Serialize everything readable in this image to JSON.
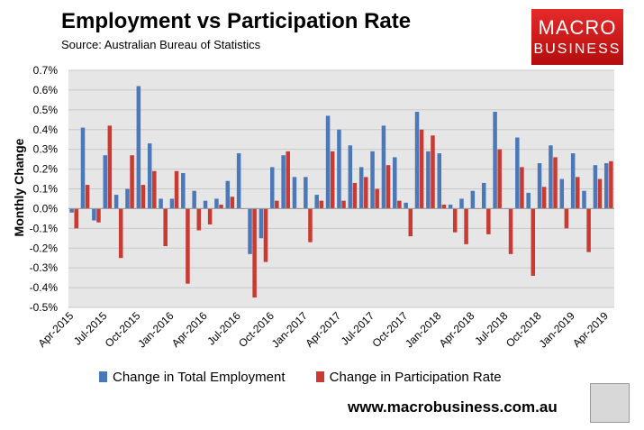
{
  "header": {
    "title": "Employment vs Participation Rate",
    "source": "Source: Australian Bureau of Statistics",
    "logo_line1": "MACRO",
    "logo_line2": "BUSINESS"
  },
  "footer": {
    "url": "www.macrobusiness.com.au"
  },
  "colors": {
    "employment": "#4a78b8",
    "participation": "#c83a32"
  },
  "chart_data": {
    "type": "bar",
    "title": "Employment vs Participation Rate",
    "ylabel": "Monthly Change",
    "xlabel": "",
    "ylim": [
      -0.5,
      0.7
    ],
    "yticks": [
      0.7,
      0.6,
      0.5,
      0.4,
      0.3,
      0.2,
      0.1,
      0.0,
      -0.1,
      -0.2,
      -0.3,
      -0.4,
      -0.5
    ],
    "ytick_labels": [
      "0.7%",
      "0.6%",
      "0.5%",
      "0.4%",
      "0.3%",
      "0.2%",
      "0.1%",
      "0.0%",
      "-0.1%",
      "-0.2%",
      "-0.3%",
      "-0.4%",
      "-0.5%"
    ],
    "categories": [
      "Apr-2015",
      "May-2015",
      "Jun-2015",
      "Jul-2015",
      "Aug-2015",
      "Sep-2015",
      "Oct-2015",
      "Nov-2015",
      "Dec-2015",
      "Jan-2016",
      "Feb-2016",
      "Mar-2016",
      "Apr-2016",
      "May-2016",
      "Jun-2016",
      "Jul-2016",
      "Aug-2016",
      "Sep-2016",
      "Oct-2016",
      "Nov-2016",
      "Dec-2016",
      "Jan-2017",
      "Feb-2017",
      "Mar-2017",
      "Apr-2017",
      "May-2017",
      "Jun-2017",
      "Jul-2017",
      "Aug-2017",
      "Sep-2017",
      "Oct-2017",
      "Nov-2017",
      "Dec-2017",
      "Jan-2018",
      "Feb-2018",
      "Mar-2018",
      "Apr-2018",
      "May-2018",
      "Jun-2018",
      "Jul-2018",
      "Aug-2018",
      "Sep-2018",
      "Oct-2018",
      "Nov-2018",
      "Dec-2018",
      "Jan-2019",
      "Feb-2019",
      "Mar-2019",
      "Apr-2019"
    ],
    "tick_labels": [
      "Apr-2015",
      "Jul-2015",
      "Oct-2015",
      "Jan-2016",
      "Apr-2016",
      "Jul-2016",
      "Oct-2016",
      "Jan-2017",
      "Apr-2017",
      "Jul-2017",
      "Oct-2017",
      "Jan-2018",
      "Apr-2018",
      "Jul-2018",
      "Oct-2018",
      "Jan-2019",
      "Apr-2019"
    ],
    "series": [
      {
        "name": "Change in Total Employment",
        "values": [
          -0.02,
          0.41,
          -0.06,
          0.27,
          0.07,
          0.1,
          0.62,
          0.33,
          0.05,
          0.05,
          0.18,
          0.09,
          0.04,
          0.05,
          0.14,
          0.28,
          -0.23,
          -0.15,
          0.21,
          0.27,
          0.16,
          0.16,
          0.07,
          0.47,
          0.4,
          0.32,
          0.21,
          0.29,
          0.42,
          0.26,
          0.03,
          0.49,
          0.29,
          0.28,
          0.02,
          0.05,
          0.09,
          0.13,
          0.49,
          0.0,
          0.36,
          0.08,
          0.23,
          0.32,
          0.15,
          0.28,
          0.09,
          0.22,
          0.23
        ]
      },
      {
        "name": "Change in Participation Rate",
        "values": [
          -0.1,
          0.12,
          -0.07,
          0.42,
          -0.25,
          0.27,
          0.12,
          0.19,
          -0.19,
          0.19,
          -0.38,
          -0.11,
          -0.08,
          0.02,
          0.06,
          0.0,
          -0.45,
          -0.27,
          0.04,
          0.29,
          0.0,
          -0.17,
          0.04,
          0.29,
          0.04,
          0.13,
          0.16,
          0.1,
          0.22,
          0.04,
          -0.14,
          0.4,
          0.37,
          0.02,
          -0.12,
          -0.18,
          0.0,
          -0.13,
          0.3,
          -0.23,
          0.21,
          -0.34,
          0.11,
          0.26,
          -0.1,
          0.16,
          -0.22,
          0.15,
          0.24
        ]
      }
    ],
    "legend_position": "bottom"
  }
}
